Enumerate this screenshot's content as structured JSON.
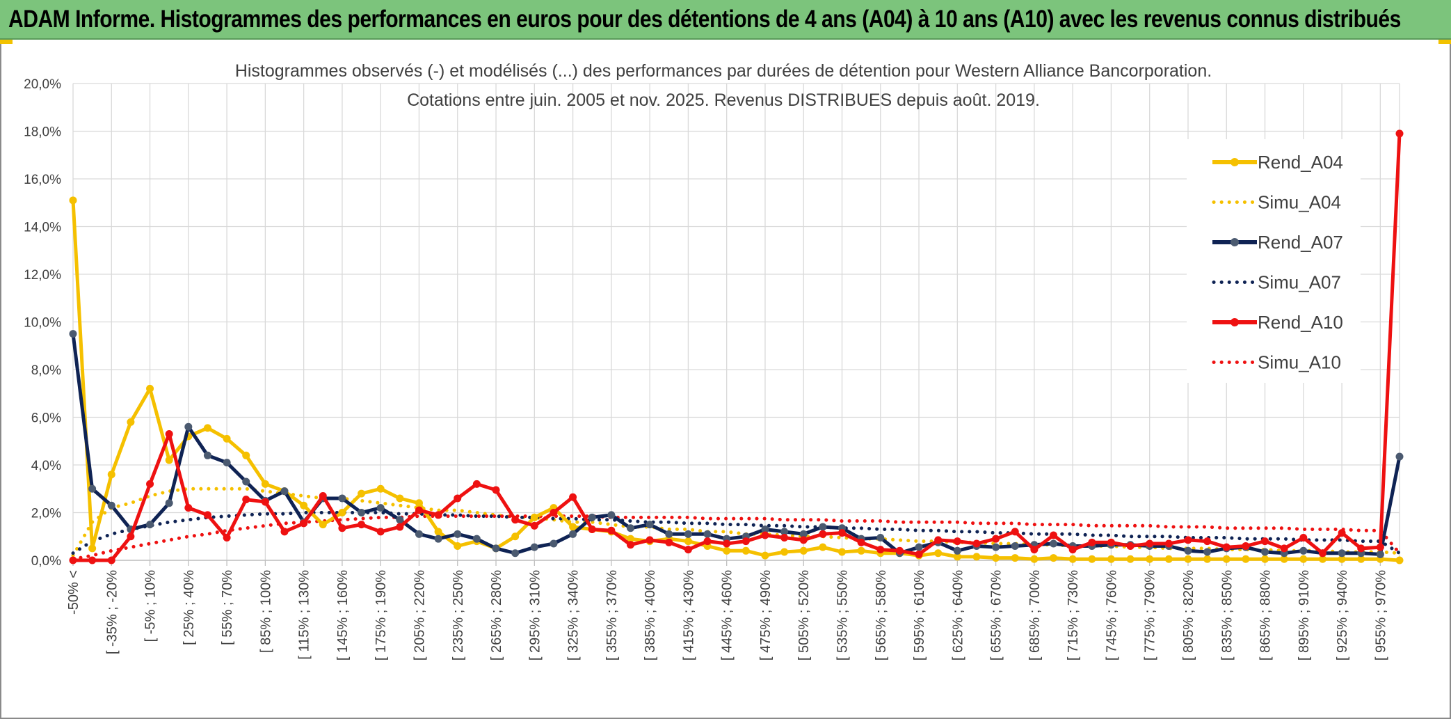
{
  "banner": {
    "title": "ADAM Informe. Histogrammes des performances en euros pour des détentions de 4 ans (A04) à 10 ans (A10) avec les revenus connus distribués",
    "background": "#7cc47c"
  },
  "chart_data": {
    "type": "line",
    "title": "Histogrammes observés (-) et modélisés (...) des performances par durées de détention pour Western Alliance Bancorporation.",
    "subtitle": "Cotations entre juin. 2005 et nov. 2025. Revenus DISTRIBUES depuis août. 2019.",
    "xlabel": "",
    "ylabel": "",
    "ylim": [
      0,
      20
    ],
    "y_ticks": [
      "0,0%",
      "2,0%",
      "4,0%",
      "6,0%",
      "8,0%",
      "10,0%",
      "12,0%",
      "14,0%",
      "16,0%",
      "18,0%",
      "20,0%"
    ],
    "grid": true,
    "legend_position": "right",
    "x_tick_labels": [
      "-50% <",
      "[ -35% ; -20%",
      "[ -5% ; 10%",
      "[ 25% ; 40%",
      "[ 55% ; 70%",
      "[ 85% ; 100%",
      "[ 115% ; 130%",
      "[ 145% ; 160%",
      "[ 175% ; 190%",
      "[ 205% ; 220%",
      "[ 235% ; 250%",
      "[ 265% ; 280%",
      "[ 295% ; 310%",
      "[ 325% ; 340%",
      "[ 355% ; 370%",
      "[ 385% ; 400%",
      "[ 415% ; 430%",
      "[ 445% ; 460%",
      "[ 475% ; 490%",
      "[ 505% ; 520%",
      "[ 535% ; 550%",
      "[ 565% ; 580%",
      "[ 595% ; 610%",
      "[ 625% ; 640%",
      "[ 655% ; 670%",
      "[ 685% ; 700%",
      "[ 715% ; 730%",
      "[ 745% ; 760%",
      "[ 775% ; 790%",
      "[ 805% ; 820%",
      "[ 835% ; 850%",
      "[ 865% ; 880%",
      "[ 895% ; 910%",
      "[ 925% ; 940%",
      "[ 955% ; 970%"
    ],
    "n_points": 70,
    "series": [
      {
        "name": "Rend_A04",
        "style": "solid",
        "color": "#f5c000",
        "values": [
          15.1,
          0.5,
          3.6,
          5.8,
          7.2,
          4.2,
          5.2,
          5.55,
          5.1,
          4.4,
          3.2,
          2.9,
          2.3,
          1.5,
          2.0,
          2.8,
          3.0,
          2.6,
          2.4,
          1.2,
          0.6,
          0.8,
          0.5,
          1.0,
          1.8,
          2.2,
          1.4,
          1.3,
          1.2,
          0.9,
          0.8,
          0.9,
          0.8,
          0.6,
          0.4,
          0.4,
          0.2,
          0.35,
          0.4,
          0.55,
          0.35,
          0.4,
          0.3,
          0.3,
          0.2,
          0.3,
          0.15,
          0.15,
          0.1,
          0.1,
          0.05,
          0.1,
          0.05,
          0.05,
          0.05,
          0.05,
          0.05,
          0.05,
          0.05,
          0.05,
          0.05,
          0.05,
          0.05,
          0.05,
          0.05,
          0.05,
          0.05,
          0.05,
          0.05,
          0.0
        ]
      },
      {
        "name": "Simu_A04",
        "style": "dotted",
        "color": "#f5c000",
        "values": [
          0.2,
          1.6,
          2.2,
          2.4,
          2.7,
          2.9,
          3.0,
          3.0,
          3.0,
          3.0,
          2.9,
          2.8,
          2.7,
          2.6,
          2.6,
          2.5,
          2.4,
          2.3,
          2.2,
          2.1,
          2.1,
          2.0,
          1.9,
          1.8,
          1.8,
          1.7,
          1.6,
          1.6,
          1.5,
          1.4,
          1.4,
          1.3,
          1.3,
          1.2,
          1.2,
          1.1,
          1.1,
          1.05,
          1.0,
          1.0,
          0.95,
          0.9,
          0.9,
          0.85,
          0.8,
          0.8,
          0.75,
          0.75,
          0.7,
          0.7,
          0.65,
          0.65,
          0.6,
          0.6,
          0.6,
          0.55,
          0.55,
          0.5,
          0.5,
          0.5,
          0.45,
          0.45,
          0.45,
          0.4,
          0.4,
          0.4,
          0.35,
          0.35,
          0.35,
          0.3
        ]
      },
      {
        "name": "Rend_A07",
        "style": "solid",
        "color": "#0f2354",
        "values": [
          9.5,
          3.0,
          2.3,
          1.3,
          1.5,
          2.4,
          5.6,
          4.4,
          4.1,
          3.3,
          2.5,
          2.9,
          1.6,
          2.6,
          2.6,
          2.0,
          2.2,
          1.7,
          1.1,
          0.9,
          1.1,
          0.9,
          0.5,
          0.3,
          0.55,
          0.7,
          1.1,
          1.8,
          1.9,
          1.35,
          1.5,
          1.1,
          1.1,
          1.1,
          0.9,
          1.0,
          1.3,
          1.2,
          1.1,
          1.4,
          1.35,
          0.9,
          0.95,
          0.3,
          0.55,
          0.75,
          0.4,
          0.6,
          0.55,
          0.6,
          0.65,
          0.7,
          0.6,
          0.6,
          0.65,
          0.65,
          0.6,
          0.6,
          0.4,
          0.35,
          0.5,
          0.55,
          0.35,
          0.3,
          0.4,
          0.3,
          0.3,
          0.3,
          0.25,
          4.35
        ]
      },
      {
        "name": "Simu_A07",
        "style": "dotted",
        "color": "#0f2354",
        "values": [
          0.3,
          0.8,
          1.1,
          1.3,
          1.45,
          1.6,
          1.7,
          1.8,
          1.85,
          1.9,
          1.95,
          1.95,
          2.0,
          2.0,
          2.0,
          2.0,
          2.0,
          1.95,
          1.95,
          1.9,
          1.9,
          1.85,
          1.85,
          1.8,
          1.8,
          1.75,
          1.75,
          1.7,
          1.7,
          1.65,
          1.6,
          1.6,
          1.55,
          1.55,
          1.5,
          1.5,
          1.45,
          1.45,
          1.4,
          1.4,
          1.35,
          1.35,
          1.3,
          1.3,
          1.25,
          1.25,
          1.2,
          1.2,
          1.15,
          1.15,
          1.1,
          1.1,
          1.1,
          1.05,
          1.05,
          1.0,
          1.0,
          1.0,
          0.95,
          0.95,
          0.95,
          0.9,
          0.9,
          0.9,
          0.85,
          0.85,
          0.85,
          0.8,
          0.8,
          0.3
        ]
      },
      {
        "name": "Rend_A10",
        "style": "solid",
        "color": "#ee1111",
        "values": [
          0.0,
          0.0,
          0.0,
          1.0,
          3.2,
          5.3,
          2.2,
          1.9,
          0.95,
          2.55,
          2.45,
          1.2,
          1.55,
          2.7,
          1.35,
          1.5,
          1.2,
          1.4,
          2.1,
          1.9,
          2.6,
          3.2,
          2.95,
          1.7,
          1.45,
          2.0,
          2.65,
          1.3,
          1.25,
          0.65,
          0.85,
          0.75,
          0.45,
          0.8,
          0.7,
          0.8,
          1.05,
          0.95,
          0.85,
          1.1,
          1.15,
          0.75,
          0.45,
          0.4,
          0.25,
          0.85,
          0.8,
          0.7,
          0.9,
          1.2,
          0.45,
          1.05,
          0.45,
          0.75,
          0.75,
          0.6,
          0.7,
          0.7,
          0.85,
          0.8,
          0.55,
          0.6,
          0.8,
          0.5,
          0.95,
          0.3,
          1.15,
          0.5,
          0.55,
          17.9
        ]
      },
      {
        "name": "Simu_A10",
        "style": "dotted",
        "color": "#ee1111",
        "values": [
          0.05,
          0.2,
          0.4,
          0.55,
          0.7,
          0.85,
          1.0,
          1.1,
          1.25,
          1.35,
          1.45,
          1.55,
          1.6,
          1.65,
          1.7,
          1.75,
          1.8,
          1.8,
          1.85,
          1.85,
          1.85,
          1.85,
          1.85,
          1.85,
          1.85,
          1.85,
          1.85,
          1.85,
          1.8,
          1.8,
          1.8,
          1.8,
          1.8,
          1.75,
          1.75,
          1.75,
          1.75,
          1.7,
          1.7,
          1.7,
          1.65,
          1.65,
          1.65,
          1.6,
          1.6,
          1.6,
          1.6,
          1.55,
          1.55,
          1.55,
          1.5,
          1.5,
          1.5,
          1.45,
          1.45,
          1.45,
          1.45,
          1.4,
          1.4,
          1.4,
          1.35,
          1.35,
          1.35,
          1.35,
          1.3,
          1.3,
          1.3,
          1.25,
          1.25,
          0.3
        ]
      }
    ]
  },
  "colors": {
    "grid": "#d9d9d9",
    "axis_text": "#404040",
    "corner_accent": "#f2c200"
  }
}
